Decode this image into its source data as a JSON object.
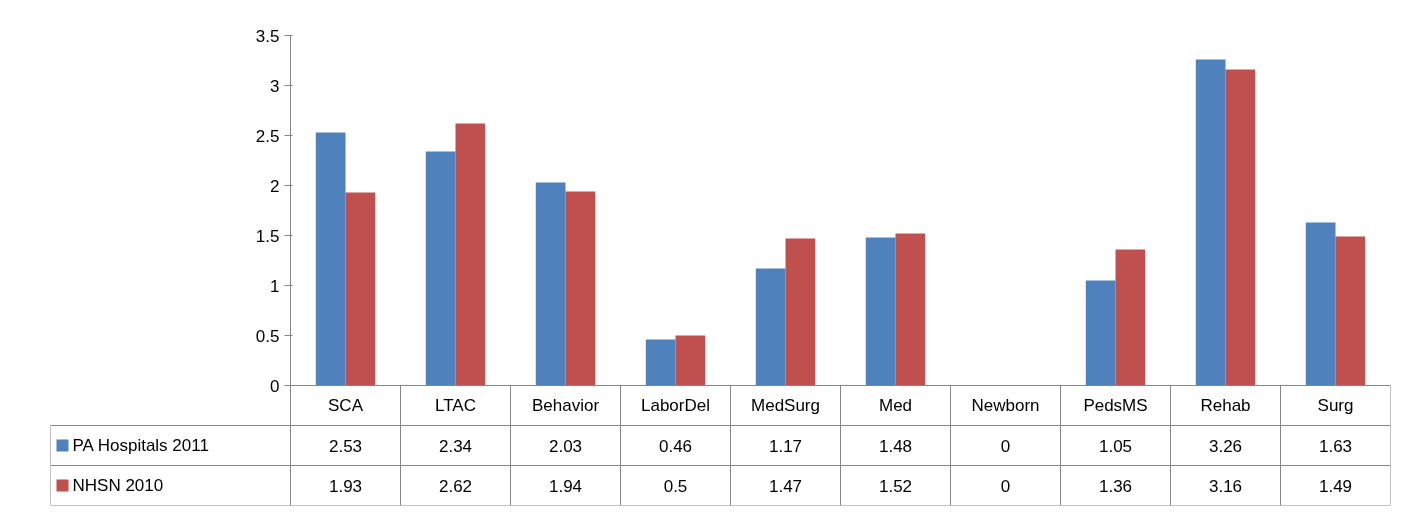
{
  "chart_data": {
    "type": "bar",
    "categories": [
      "SCA",
      "LTAC",
      "Behavior",
      "LaborDel",
      "MedSurg",
      "Med",
      "Newborn",
      "PedsMS",
      "Rehab",
      "Surg"
    ],
    "series": [
      {
        "name": "PA Hospitals 2011",
        "color": "#4f81bd",
        "values": [
          2.53,
          2.34,
          2.03,
          0.46,
          1.17,
          1.48,
          0,
          1.05,
          3.26,
          1.63
        ]
      },
      {
        "name": "NHSN 2010",
        "color": "#c0504d",
        "values": [
          1.93,
          2.62,
          1.94,
          0.5,
          1.47,
          1.52,
          0,
          1.36,
          3.16,
          1.49
        ]
      }
    ],
    "ylim": [
      0,
      3.5
    ],
    "yticks": [
      0,
      0.5,
      1,
      1.5,
      2,
      2.5,
      3,
      3.5
    ],
    "grid": false,
    "legend": "bottom",
    "data_labels": true
  }
}
